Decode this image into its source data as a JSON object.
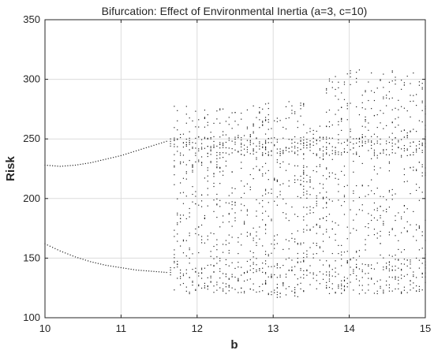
{
  "chart_data": {
    "type": "scatter",
    "title": "Bifurcation: Effect of Environmental Inertia (a=3, c=10)",
    "xlabel": "b",
    "ylabel": "Risk",
    "xlim": [
      10,
      15
    ],
    "ylim": [
      100,
      350
    ],
    "xticks": [
      10,
      11,
      12,
      13,
      14,
      15
    ],
    "yticks": [
      100,
      150,
      200,
      250,
      300,
      350
    ],
    "grid": true,
    "legend": "none",
    "marker_color": "#222222",
    "regime_stable_two_branch": {
      "b_range": [
        10,
        11.65
      ],
      "upper_branch": [
        {
          "b": 10.0,
          "risk": 228
        },
        {
          "b": 10.2,
          "risk": 227
        },
        {
          "b": 10.4,
          "risk": 228
        },
        {
          "b": 10.6,
          "risk": 230
        },
        {
          "b": 10.8,
          "risk": 233
        },
        {
          "b": 11.0,
          "risk": 236
        },
        {
          "b": 11.2,
          "risk": 240
        },
        {
          "b": 11.4,
          "risk": 244
        },
        {
          "b": 11.6,
          "risk": 248
        }
      ],
      "lower_branch": [
        {
          "b": 10.0,
          "risk": 162
        },
        {
          "b": 10.2,
          "risk": 156
        },
        {
          "b": 10.4,
          "risk": 151
        },
        {
          "b": 10.6,
          "risk": 147
        },
        {
          "b": 10.8,
          "risk": 144
        },
        {
          "b": 11.0,
          "risk": 142
        },
        {
          "b": 11.2,
          "risk": 140
        },
        {
          "b": 11.4,
          "risk": 139
        },
        {
          "b": 11.6,
          "risk": 138
        }
      ]
    },
    "regime_chaotic": {
      "b_range": [
        11.65,
        15
      ],
      "bands": [
        {
          "b_from": 11.7,
          "b_to": 12.9,
          "risk_min": 120,
          "risk_max": 278
        },
        {
          "b_from": 12.9,
          "b_to": 13.4,
          "risk_min": 115,
          "risk_max": 285
        },
        {
          "b_from": 13.4,
          "b_to": 13.7,
          "risk_min": 150,
          "risk_max": 265
        },
        {
          "b_from": 13.7,
          "b_to": 15.0,
          "risk_min": 120,
          "risk_max": 308
        }
      ]
    }
  }
}
